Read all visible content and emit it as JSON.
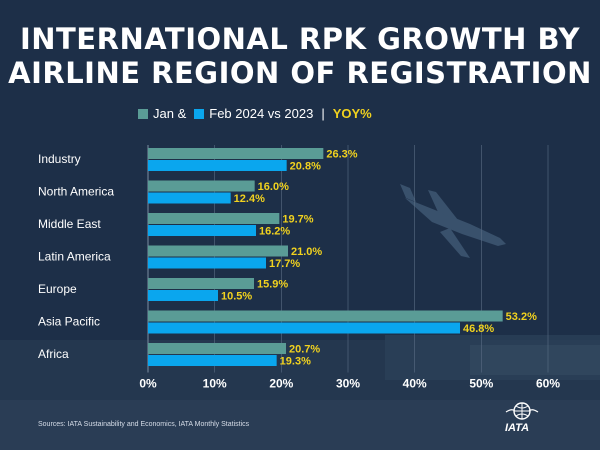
{
  "title_lines": [
    "INTERNATIONAL RPK GROWTH BY",
    "AIRLINE REGION OF REGISTRATION"
  ],
  "legend": {
    "jan": "Jan &",
    "feb": "Feb 2024 vs 2023",
    "separator": "|",
    "yoy": "YOY%"
  },
  "source": "Sources: IATA Sustainability and Economics, IATA Monthly Statistics",
  "logo_text": "IATA",
  "colors": {
    "background": "#1d2f48",
    "jan": "#5a9c96",
    "feb": "#0aa6ee",
    "value_label": "#f1d21f"
  },
  "chart_data": {
    "type": "bar",
    "orientation": "horizontal",
    "categories": [
      "Industry",
      "North America",
      "Middle East",
      "Latin America",
      "Europe",
      "Asia Pacific",
      "Africa"
    ],
    "series": [
      {
        "name": "Jan",
        "values": [
          26.3,
          16.0,
          19.7,
          21.0,
          15.9,
          53.2,
          20.7
        ]
      },
      {
        "name": "Feb",
        "values": [
          20.8,
          12.4,
          16.2,
          17.7,
          10.5,
          46.8,
          19.3
        ]
      }
    ],
    "xlim": [
      0,
      60
    ],
    "xticks": [
      0,
      10,
      20,
      30,
      40,
      50,
      60
    ],
    "tick_format": "%",
    "grid": true,
    "legend": "top"
  }
}
